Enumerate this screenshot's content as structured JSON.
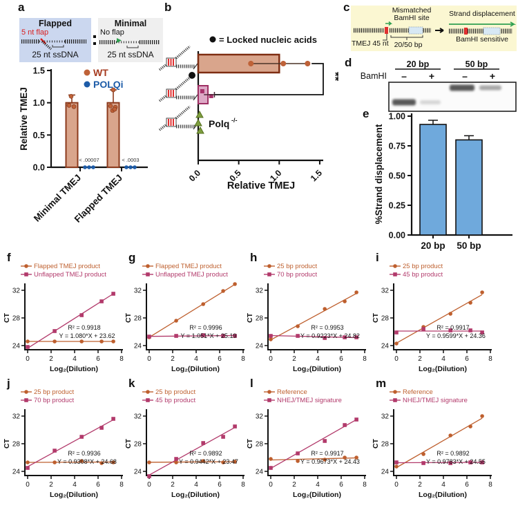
{
  "panel_labels": {
    "a": "a",
    "b": "b",
    "c": "c",
    "d": "d",
    "e": "e",
    "f": "f",
    "g": "g",
    "h": "h",
    "i": "i",
    "j": "j",
    "k": "k",
    "l": "l",
    "m": "m"
  },
  "colors": {
    "orange_series": "#BE5F2E",
    "magenta_series": "#B23A6B",
    "tan_bar_fill": "#D9A58C",
    "brown_border": "#8C3A1C",
    "wt_text": "#A63B1F",
    "polqi_blue": "#1D5CA8",
    "magenta_bar_fill": "#DDA9C6",
    "magenta_bar_border": "#9E2F63",
    "green_marker": "#7E9E3F",
    "blue_bar": "#6FA9DC",
    "panel_c_bg": "#FBF7D2",
    "flapped_bg": "#CBD7EF",
    "minimal_bg": "#EFEFEF",
    "red_flap": "#D92020",
    "green_arrow": "#2FA050"
  },
  "panel_a": {
    "flapped": {
      "title": "Flapped",
      "flap_label": "5 nt flap",
      "ssdna_label": "25 nt ssDNA"
    },
    "minimal": {
      "title": "Minimal",
      "flap_label": "No flap",
      "ssdna_label": "25 nt ssDNA"
    }
  },
  "panel_c": {
    "mismatched_line1": "Mismatched",
    "mismatched_line2": "BamHI site",
    "tmej_label": "TMEJ 45 nt",
    "bp_label": "20/50 bp",
    "strand_label": "Strand displacement",
    "bamhi_label": "BamHI sensitive"
  },
  "panel_d": {
    "row_label": "BamHI",
    "groups": [
      "20 bp",
      "50 bp"
    ],
    "lanes": [
      "–",
      "+",
      "–",
      "+"
    ],
    "bands": [
      {
        "lane": 0,
        "position": "low",
        "intensity": "strong"
      },
      {
        "lane": 1,
        "position": "low",
        "intensity": "faint"
      },
      {
        "lane": 2,
        "position": "high",
        "intensity": "strong"
      },
      {
        "lane": 3,
        "position": "high",
        "intensity": "medium"
      }
    ]
  },
  "qpcr_common": {
    "ylabel": "CT",
    "xlabel": "Log₂(Dilution)",
    "yticks": [
      24,
      28,
      32
    ],
    "ytick_labels": [
      "24",
      "28",
      "32"
    ],
    "xticks": [
      0,
      2,
      4,
      6,
      8
    ],
    "xtick_labels": [
      "0",
      "2",
      "4",
      "6",
      "8"
    ],
    "xlim": [
      0,
      8
    ],
    "ylim": [
      23.4,
      33
    ]
  },
  "chart_data": [
    {
      "id": "a",
      "type": "bar",
      "ylabel": "Relative TMEJ",
      "categories": [
        "Minimal TMEJ",
        "Flapped TMEJ"
      ],
      "yticks": [
        0,
        0.5,
        1,
        1.5
      ],
      "ytick_labels": [
        "0.0",
        "0.5",
        "1.0",
        "1.5"
      ],
      "ylim": [
        0,
        1.5
      ],
      "series": [
        {
          "name": "WT",
          "color": "#BF6238",
          "text_color": "#A63B1F",
          "values": [
            1.0,
            1.0
          ],
          "error_high": [
            1.12,
            1.2
          ],
          "points": [
            [
              0.96,
              0.94,
              1.1
            ],
            [
              0.95,
              0.93,
              0.88,
              0.9,
              1.2
            ]
          ]
        },
        {
          "name": "POLQi",
          "color": "#1D5CA8",
          "text_color": "#1D5CA8",
          "values": [
            0,
            0
          ],
          "p_values": [
            "< .00007",
            "< .0003"
          ]
        }
      ]
    },
    {
      "id": "b",
      "type": "hbar",
      "xlabel": "Relative TMEJ",
      "legend_marker": "●",
      "legend_text": "= Locked nucleic acids",
      "significance": "**",
      "xticks": [
        0,
        0.5,
        1,
        1.5
      ],
      "xtick_labels": [
        "0.0",
        "0.5",
        "1.0",
        "1.5"
      ],
      "xlim": [
        0,
        1.5
      ],
      "rows": [
        {
          "name": "flapped substrate",
          "style": "tan",
          "value": 1.0,
          "error": [
            0.65,
            1.35
          ],
          "points": [
            0.65,
            1.05,
            1.35
          ]
        },
        {
          "name": "flapped substrate with LNA",
          "style": "magenta",
          "value": 0.12,
          "error": [
            0.07,
            0.2
          ],
          "points": [
            0.05,
            0.16
          ]
        },
        {
          "name": "Polq knockout",
          "style": "green",
          "group_label": "Polq",
          "group_sup": "-/-",
          "points": [
            0.01,
            0.02,
            0.03
          ]
        }
      ]
    },
    {
      "id": "e",
      "type": "bar",
      "ylabel": "%Strand displacement",
      "categories": [
        "20 bp",
        "50 bp"
      ],
      "values": [
        0.93,
        0.8
      ],
      "error_high": [
        0.965,
        0.835
      ],
      "yticks": [
        0,
        0.25,
        0.5,
        0.75,
        1
      ],
      "ytick_labels": [
        "0.00",
        "0.25",
        "0.50",
        "0.75",
        "1.00"
      ],
      "ylim": [
        0,
        1
      ]
    },
    {
      "id": "f",
      "type": "line",
      "r2": "R² = 0.9918",
      "equation": "Y = 1.080*X + 23.62",
      "series": [
        {
          "name": "Flapped TMEJ product",
          "marker": "circle",
          "color": "#BE5F2E",
          "x": [
            0,
            2.3,
            4.6,
            6.3,
            7.3
          ],
          "y": [
            24.6,
            24.6,
            24.6,
            24.6,
            24.6
          ],
          "trend": [
            24.6,
            24.6
          ]
        },
        {
          "name": "Unflapped TMEJ product",
          "marker": "square",
          "color": "#B23A6B",
          "x": [
            0,
            2.3,
            4.6,
            6.3,
            7.3
          ],
          "y": [
            23.8,
            26.1,
            28.4,
            30.4,
            31.5
          ],
          "trend": [
            23.62,
            31.5
          ]
        }
      ]
    },
    {
      "id": "g",
      "type": "line",
      "r2": "R² = 0.9996",
      "equation": "Y = 1.051*X + 25.19",
      "series": [
        {
          "name": "Flapped TMEJ product",
          "marker": "circle",
          "color": "#BE5F2E",
          "x": [
            0,
            2.3,
            4.6,
            6.3,
            7.3
          ],
          "y": [
            25.2,
            27.6,
            30.0,
            31.9,
            32.9
          ],
          "trend": [
            25.19,
            32.86
          ]
        },
        {
          "name": "Unflapped TMEJ product",
          "marker": "square",
          "color": "#B23A6B",
          "x": [
            0,
            2.3,
            4.6,
            6.3,
            7.3
          ],
          "y": [
            25.3,
            25.4,
            25.5,
            25.4,
            25.4
          ],
          "trend": [
            25.33,
            25.45
          ]
        }
      ]
    },
    {
      "id": "h",
      "type": "line",
      "r2": "R² = 0.9953",
      "equation": "Y = 0.9223*X + 24.82",
      "series": [
        {
          "name": "25 bp product",
          "marker": "circle",
          "color": "#BE5F2E",
          "x": [
            0,
            2.3,
            4.6,
            6.3,
            7.3
          ],
          "y": [
            24.9,
            26.8,
            29.3,
            30.4,
            31.7
          ],
          "trend": [
            24.82,
            31.55
          ]
        },
        {
          "name": "70 bp product",
          "marker": "square",
          "color": "#B23A6B",
          "x": [
            0,
            2.3,
            4.6,
            6.3,
            7.3
          ],
          "y": [
            25.4,
            25.4,
            25.1,
            25.2,
            25.2
          ],
          "trend": [
            25.45,
            25.15
          ]
        }
      ]
    },
    {
      "id": "i",
      "type": "line",
      "r2": "R² = 0.9917",
      "equation": "Y = 0.9599*X + 24.36",
      "series": [
        {
          "name": "25 bp product",
          "marker": "circle",
          "color": "#BE5F2E",
          "x": [
            0,
            2.3,
            4.6,
            6.3,
            7.3
          ],
          "y": [
            24.3,
            26.7,
            28.6,
            30.2,
            31.7
          ],
          "trend": [
            24.36,
            31.37
          ]
        },
        {
          "name": "45 bp product",
          "marker": "square",
          "color": "#B23A6B",
          "x": [
            0,
            2.3,
            4.6,
            6.3,
            7.3
          ],
          "y": [
            25.9,
            26.4,
            26.2,
            26.2,
            25.9
          ],
          "trend": [
            26.1,
            26.1
          ]
        }
      ]
    },
    {
      "id": "j",
      "type": "line",
      "r2": "R² = 0.9936",
      "equation": "Y = 0.9308*X + 24.68",
      "series": [
        {
          "name": "25 bp product",
          "marker": "circle",
          "color": "#BE5F2E",
          "x": [
            0,
            2.3,
            4.6,
            6.3,
            7.3
          ],
          "y": [
            25.3,
            25.3,
            25.5,
            25.2,
            25.3
          ],
          "trend": [
            25.3,
            25.35
          ]
        },
        {
          "name": "70 bp product",
          "marker": "square",
          "color": "#B23A6B",
          "x": [
            0,
            2.3,
            4.6,
            6.3,
            7.3
          ],
          "y": [
            24.5,
            27.0,
            29.0,
            30.3,
            31.6
          ],
          "trend": [
            24.68,
            31.47
          ]
        }
      ]
    },
    {
      "id": "k",
      "type": "line",
      "r2": "R² = 0.9892",
      "equation": "Y = 0.9442*X + 23.47",
      "series": [
        {
          "name": "25 bp product",
          "marker": "circle",
          "color": "#BE5F2E",
          "x": [
            0,
            2.3,
            4.6,
            6.3,
            7.3
          ],
          "y": [
            25.3,
            25.3,
            25.5,
            25.3,
            25.4
          ],
          "trend": [
            25.32,
            25.4
          ]
        },
        {
          "name": "45 bp product",
          "marker": "square",
          "color": "#B23A6B",
          "x": [
            0,
            2.3,
            4.6,
            6.3,
            7.3
          ],
          "y": [
            23.3,
            25.8,
            28.1,
            29.0,
            30.5
          ],
          "trend": [
            23.47,
            30.36
          ]
        }
      ]
    },
    {
      "id": "l",
      "type": "line",
      "r2": "R² = 0.9917",
      "equation": "Y = 0.9673*X + 24.43",
      "series": [
        {
          "name": "Reference",
          "marker": "circle",
          "color": "#BE5F2E",
          "x": [
            0,
            2.3,
            4.6,
            6.3,
            7.3
          ],
          "y": [
            25.8,
            25.5,
            25.7,
            26.0,
            26.0
          ],
          "trend": [
            25.65,
            25.95
          ]
        },
        {
          "name": "NHEJ/TMEJ signature",
          "marker": "square",
          "color": "#B23A6B",
          "x": [
            0,
            2.3,
            4.6,
            6.3,
            7.3
          ],
          "y": [
            24.5,
            26.6,
            28.4,
            30.7,
            31.5
          ],
          "trend": [
            24.43,
            31.49
          ]
        }
      ]
    },
    {
      "id": "m",
      "type": "line",
      "r2": "R² = 0.9892",
      "equation": "Y = 0.9783*X + 24.55",
      "series": [
        {
          "name": "Reference",
          "marker": "circle",
          "color": "#BE5F2E",
          "x": [
            0,
            2.3,
            4.6,
            6.3,
            7.3
          ],
          "y": [
            24.7,
            26.5,
            29.2,
            30.5,
            32.0
          ],
          "trend": [
            24.55,
            31.69
          ]
        },
        {
          "name": "NHEJ/TMEJ signature",
          "marker": "square",
          "color": "#B23A6B",
          "x": [
            0,
            2.3,
            4.6,
            6.3,
            7.3
          ],
          "y": [
            25.3,
            25.2,
            25.2,
            25.3,
            25.3
          ],
          "trend": [
            25.25,
            25.3
          ]
        }
      ]
    }
  ]
}
